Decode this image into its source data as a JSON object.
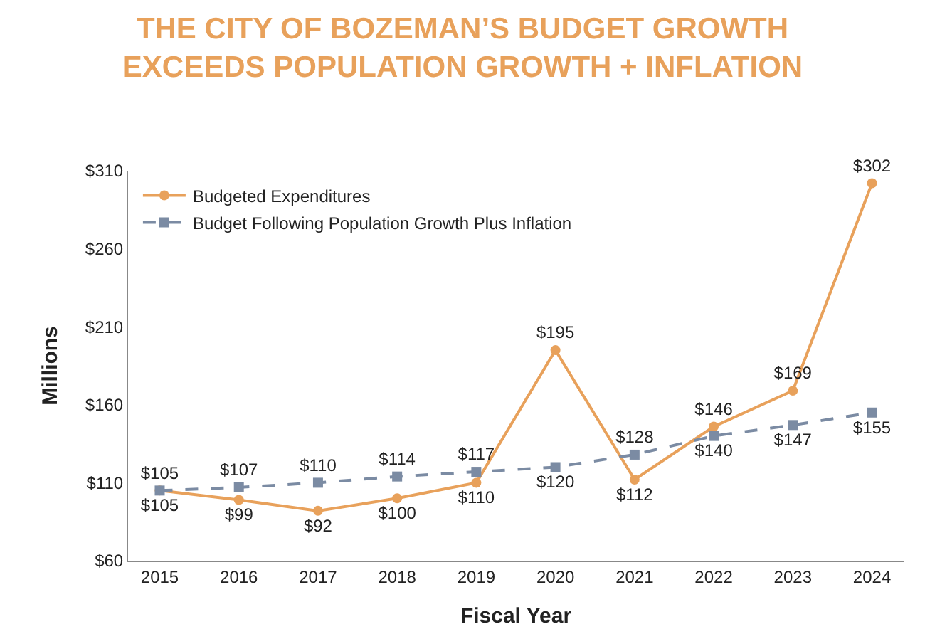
{
  "chart_data": {
    "type": "line",
    "title": "THE CITY OF BOZEMAN’S BUDGET GROWTH\nEXCEEDS POPULATION GROWTH + INFLATION",
    "xlabel": "Fiscal Year",
    "ylabel": "Millions",
    "categories": [
      "2015",
      "2016",
      "2017",
      "2018",
      "2019",
      "2020",
      "2021",
      "2022",
      "2023",
      "2024"
    ],
    "series": [
      {
        "name": "Budgeted Expenditures",
        "color": "#e8a15b",
        "marker": "circle",
        "line_style": "solid",
        "values": [
          105,
          99,
          92,
          100,
          110,
          195,
          112,
          146,
          169,
          302
        ],
        "value_labels": [
          "$105",
          "$99",
          "$92",
          "$100",
          "$110",
          "$195",
          "$112",
          "$146",
          "$169",
          "$302"
        ]
      },
      {
        "name": "Budget Following Population Growth Plus Inflation",
        "color": "#7b8ba3",
        "marker": "square",
        "line_style": "dashed",
        "values": [
          105,
          107,
          110,
          114,
          117,
          120,
          128,
          140,
          147,
          155
        ],
        "value_labels": [
          "$105",
          "$107",
          "$110",
          "$114",
          "$117",
          "$120",
          "$128",
          "$140",
          "$147",
          "$155"
        ]
      }
    ],
    "ylim": [
      60,
      310
    ],
    "yticks": [
      {
        "value": 60,
        "label": "$60"
      },
      {
        "value": 110,
        "label": "$110"
      },
      {
        "value": 160,
        "label": "$160"
      },
      {
        "value": 210,
        "label": "$210"
      },
      {
        "value": 260,
        "label": "$260"
      },
      {
        "value": 310,
        "label": "$310"
      }
    ],
    "legend": "top left"
  }
}
